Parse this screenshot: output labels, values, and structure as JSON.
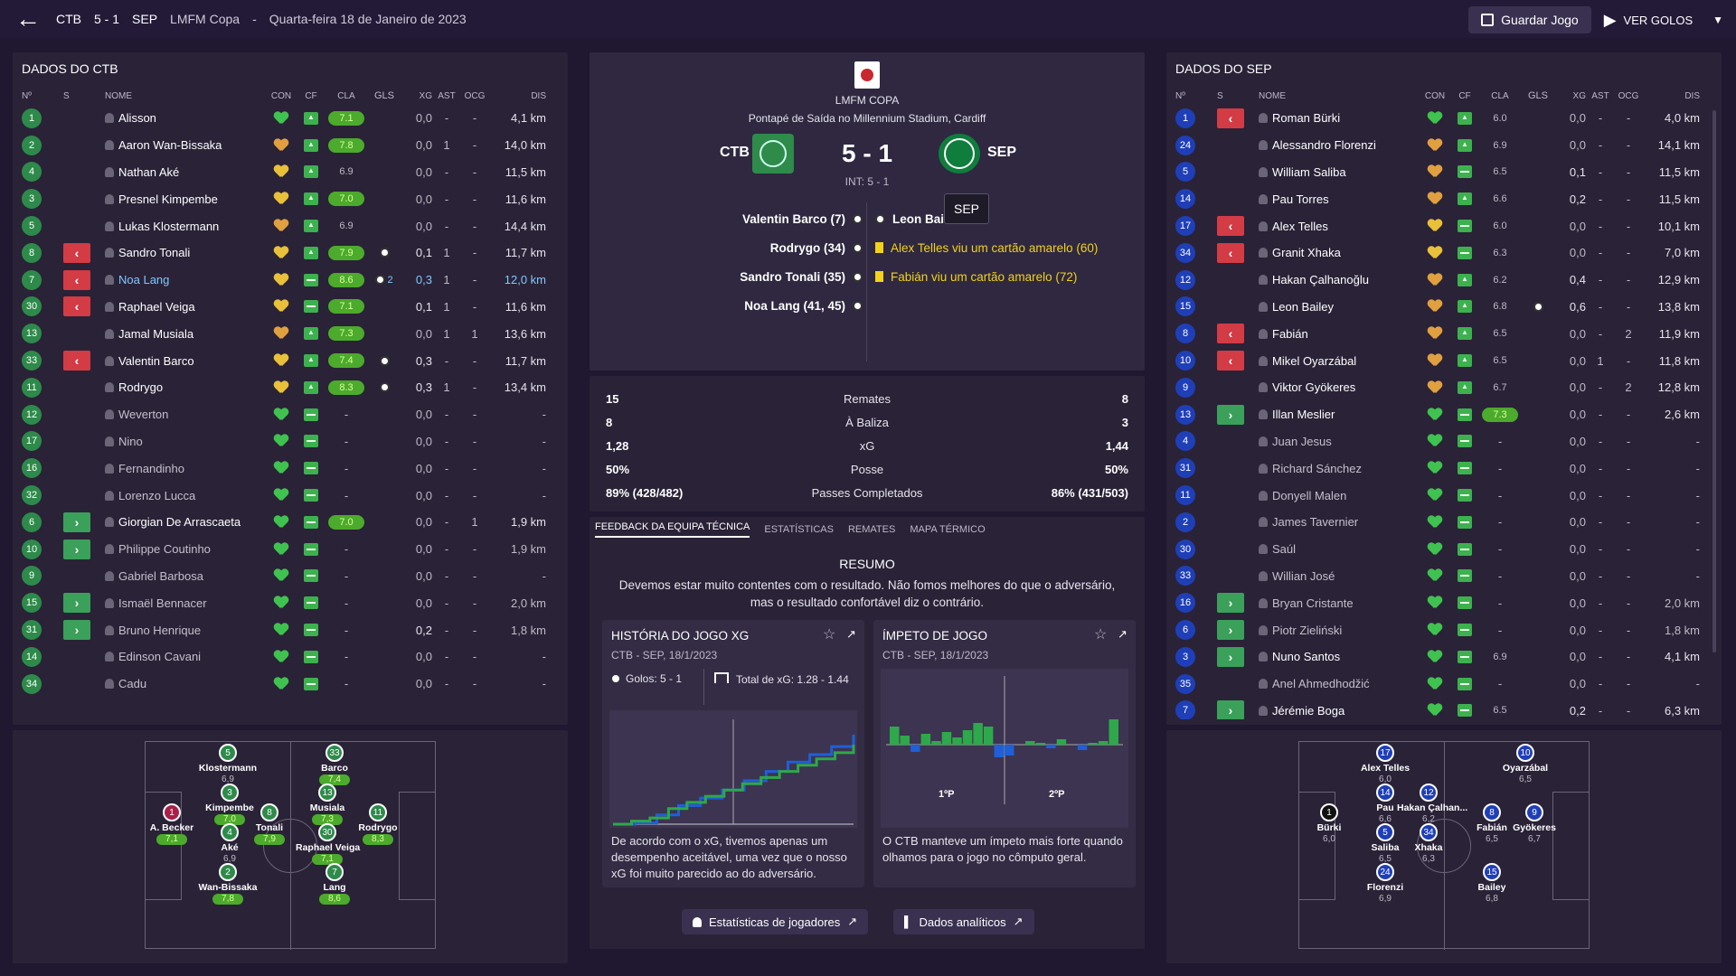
{
  "header": {
    "home_abbr": "CTB",
    "score": "5 - 1",
    "away_abbr": "SEP",
    "competition": "LMFM Copa",
    "separator": "-",
    "date": "Quarta-feira 18 de Janeiro de 2023",
    "save_label": "Guardar Jogo",
    "goals_label": "VER GOLOS"
  },
  "columns": {
    "no": "Nº",
    "s": "S",
    "name": "NOME",
    "con": "CON",
    "cf": "CF",
    "cla": "CLA",
    "gls": "GLS",
    "xg": "XG",
    "ast": "AST",
    "ocg": "OCG",
    "dis": "DIS"
  },
  "home": {
    "title": "DADOS DO CTB",
    "players": [
      {
        "no": "1",
        "s": "",
        "name": "Alisson",
        "heart": "g",
        "cf": "up",
        "cla": "7.1",
        "gls": "",
        "xg": "0,0",
        "ast": "-",
        "ocg": "-",
        "dis": "4,1 km"
      },
      {
        "no": "2",
        "s": "",
        "name": "Aaron Wan-Bissaka",
        "heart": "o",
        "cf": "up",
        "cla": "7.8",
        "gls": "",
        "xg": "0,0",
        "ast": "1",
        "ocg": "-",
        "dis": "14,0 km"
      },
      {
        "no": "4",
        "s": "",
        "name": "Nathan Aké",
        "heart": "y",
        "cf": "up",
        "cla": "6.9",
        "gls": "",
        "xg": "0,0",
        "ast": "-",
        "ocg": "-",
        "dis": "11,5 km"
      },
      {
        "no": "3",
        "s": "",
        "name": "Presnel Kimpembe",
        "heart": "y",
        "cf": "up",
        "cla": "7.0",
        "gls": "",
        "xg": "0,0",
        "ast": "-",
        "ocg": "-",
        "dis": "11,6 km"
      },
      {
        "no": "5",
        "s": "",
        "name": "Lukas Klostermann",
        "heart": "o",
        "cf": "up",
        "cla": "6.9",
        "gls": "",
        "xg": "0,0",
        "ast": "-",
        "ocg": "-",
        "dis": "14,4 km"
      },
      {
        "no": "8",
        "s": "out",
        "name": "Sandro Tonali",
        "heart": "y",
        "cf": "up",
        "cla": "7.9",
        "gls": "1",
        "xg": "0,1",
        "ast": "1",
        "ocg": "-",
        "dis": "11,7 km"
      },
      {
        "no": "7",
        "s": "out",
        "name": "Noa Lang",
        "heart": "y",
        "cf": "eq",
        "cla": "8.6",
        "gls": "2",
        "xg": "0,3",
        "ast": "1",
        "ocg": "-",
        "dis": "12,0 km",
        "hl": true
      },
      {
        "no": "30",
        "s": "out",
        "name": "Raphael Veiga",
        "heart": "y",
        "cf": "eq",
        "cla": "7.1",
        "gls": "",
        "xg": "0,1",
        "ast": "1",
        "ocg": "-",
        "dis": "11,6 km"
      },
      {
        "no": "13",
        "s": "",
        "name": "Jamal Musiala",
        "heart": "o",
        "cf": "up",
        "cla": "7.3",
        "gls": "",
        "xg": "0,0",
        "ast": "1",
        "ocg": "1",
        "dis": "13,6 km"
      },
      {
        "no": "33",
        "s": "out",
        "name": "Valentin Barco",
        "heart": "y",
        "cf": "up",
        "cla": "7.4",
        "gls": "1",
        "xg": "0,3",
        "ast": "-",
        "ocg": "-",
        "dis": "11,7 km"
      },
      {
        "no": "11",
        "s": "",
        "name": "Rodrygo",
        "heart": "y",
        "cf": "up",
        "cla": "8.3",
        "gls": "1",
        "xg": "0,3",
        "ast": "1",
        "ocg": "-",
        "dis": "13,4 km"
      },
      {
        "no": "12",
        "s": "",
        "name": "Weverton",
        "heart": "g",
        "cf": "eq",
        "cla": "-",
        "gls": "",
        "xg": "0,0",
        "ast": "-",
        "ocg": "-",
        "dis": "-"
      },
      {
        "no": "17",
        "s": "",
        "name": "Nino",
        "heart": "g",
        "cf": "eq",
        "cla": "-",
        "gls": "",
        "xg": "0,0",
        "ast": "-",
        "ocg": "-",
        "dis": "-"
      },
      {
        "no": "16",
        "s": "",
        "name": "Fernandinho",
        "heart": "g",
        "cf": "eq",
        "cla": "-",
        "gls": "",
        "xg": "0,0",
        "ast": "-",
        "ocg": "-",
        "dis": "-"
      },
      {
        "no": "32",
        "s": "",
        "name": "Lorenzo Lucca",
        "heart": "g",
        "cf": "eq",
        "cla": "-",
        "gls": "",
        "xg": "0,0",
        "ast": "-",
        "ocg": "-",
        "dis": "-"
      },
      {
        "no": "6",
        "s": "in",
        "name": "Giorgian De Arrascaeta",
        "heart": "g",
        "cf": "eq",
        "cla": "7.0",
        "gls": "",
        "xg": "0,0",
        "ast": "-",
        "ocg": "1",
        "dis": "1,9 km"
      },
      {
        "no": "10",
        "s": "in",
        "name": "Philippe Coutinho",
        "heart": "g",
        "cf": "eq",
        "cla": "-",
        "gls": "",
        "xg": "0,0",
        "ast": "-",
        "ocg": "-",
        "dis": "1,9 km"
      },
      {
        "no": "9",
        "s": "",
        "name": "Gabriel Barbosa",
        "heart": "g",
        "cf": "eq",
        "cla": "-",
        "gls": "",
        "xg": "0,0",
        "ast": "-",
        "ocg": "-",
        "dis": "-"
      },
      {
        "no": "15",
        "s": "in",
        "name": "Ismaël Bennacer",
        "heart": "g",
        "cf": "eq",
        "cla": "-",
        "gls": "",
        "xg": "0,0",
        "ast": "-",
        "ocg": "-",
        "dis": "2,0 km"
      },
      {
        "no": "31",
        "s": "in",
        "name": "Bruno Henrique",
        "heart": "g",
        "cf": "eq",
        "cla": "-",
        "gls": "",
        "xg": "0,2",
        "ast": "-",
        "ocg": "-",
        "dis": "1,8 km"
      },
      {
        "no": "14",
        "s": "",
        "name": "Edinson Cavani",
        "heart": "g",
        "cf": "eq",
        "cla": "-",
        "gls": "",
        "xg": "0,0",
        "ast": "-",
        "ocg": "-",
        "dis": "-"
      },
      {
        "no": "34",
        "s": "",
        "name": "Cadu",
        "heart": "g",
        "cf": "eq",
        "cla": "-",
        "gls": "",
        "xg": "0,0",
        "ast": "-",
        "ocg": "-",
        "dis": "-"
      }
    ],
    "formation": [
      {
        "no": "5",
        "name": "Klostermann",
        "rating": "6,9",
        "hi": false,
        "gk": false
      },
      {
        "no": "33",
        "name": "Barco",
        "rating": "7,4",
        "hi": true,
        "gk": false
      },
      {
        "no": "3",
        "name": "Kimpembe",
        "rating": "7,0",
        "hi": true,
        "gk": false
      },
      {
        "no": "13",
        "name": "Musiala",
        "rating": "7,3",
        "hi": true,
        "gk": false
      },
      {
        "no": "1",
        "name": "A. Becker",
        "rating": "7,1",
        "hi": true,
        "gk": true
      },
      {
        "no": "8",
        "name": "Tonali",
        "rating": "7,9",
        "hi": true,
        "gk": false
      },
      {
        "no": "11",
        "name": "Rodrygo",
        "rating": "8,3",
        "hi": true,
        "gk": false
      },
      {
        "no": "4",
        "name": "Aké",
        "rating": "6,9",
        "hi": false,
        "gk": false
      },
      {
        "no": "30",
        "name": "Raphael Veiga",
        "rating": "7,1",
        "hi": true,
        "gk": false
      },
      {
        "no": "2",
        "name": "Wan-Bissaka",
        "rating": "7,8",
        "hi": true,
        "gk": false
      },
      {
        "no": "7",
        "name": "Lang",
        "rating": "8,6",
        "hi": true,
        "gk": false
      }
    ]
  },
  "away": {
    "title": "DADOS DO SEP",
    "players": [
      {
        "no": "1",
        "s": "out",
        "name": "Roman Bürki",
        "heart": "g",
        "cf": "up",
        "cla": "6.0",
        "gls": "",
        "xg": "0,0",
        "ast": "-",
        "ocg": "-",
        "dis": "4,0 km"
      },
      {
        "no": "24",
        "s": "",
        "name": "Alessandro Florenzi",
        "heart": "o",
        "cf": "up",
        "cla": "6.9",
        "gls": "",
        "xg": "0,0",
        "ast": "-",
        "ocg": "-",
        "dis": "14,1 km"
      },
      {
        "no": "5",
        "s": "",
        "name": "William Saliba",
        "heart": "o",
        "cf": "eq",
        "cla": "6.5",
        "gls": "",
        "xg": "0,1",
        "ast": "-",
        "ocg": "-",
        "dis": "11,5 km"
      },
      {
        "no": "14",
        "s": "",
        "name": "Pau Torres",
        "heart": "o",
        "cf": "up",
        "cla": "6.6",
        "gls": "",
        "xg": "0,2",
        "ast": "-",
        "ocg": "-",
        "dis": "11,5 km"
      },
      {
        "no": "17",
        "s": "out",
        "name": "Alex Telles",
        "heart": "y",
        "cf": "eq",
        "cla": "6.0",
        "gls": "",
        "xg": "0,0",
        "ast": "-",
        "ocg": "-",
        "dis": "10,1 km"
      },
      {
        "no": "34",
        "s": "out",
        "name": "Granit Xhaka",
        "heart": "y",
        "cf": "eq",
        "cla": "6.3",
        "gls": "",
        "xg": "0,0",
        "ast": "-",
        "ocg": "-",
        "dis": "7,0 km"
      },
      {
        "no": "12",
        "s": "",
        "name": "Hakan Çalhanoğlu",
        "heart": "o",
        "cf": "up",
        "cla": "6.2",
        "gls": "",
        "xg": "0,4",
        "ast": "-",
        "ocg": "-",
        "dis": "12,9 km"
      },
      {
        "no": "15",
        "s": "",
        "name": "Leon Bailey",
        "heart": "o",
        "cf": "up",
        "cla": "6.8",
        "gls": "1",
        "xg": "0,6",
        "ast": "-",
        "ocg": "-",
        "dis": "13,8 km"
      },
      {
        "no": "8",
        "s": "out",
        "name": "Fabián",
        "heart": "o",
        "cf": "up",
        "cla": "6.5",
        "gls": "",
        "xg": "0,0",
        "ast": "-",
        "ocg": "2",
        "dis": "11,9 km"
      },
      {
        "no": "10",
        "s": "out",
        "name": "Mikel Oyarzábal",
        "heart": "o",
        "cf": "up",
        "cla": "6.5",
        "gls": "",
        "xg": "0,0",
        "ast": "1",
        "ocg": "-",
        "dis": "11,8 km"
      },
      {
        "no": "9",
        "s": "",
        "name": "Viktor Gyökeres",
        "heart": "o",
        "cf": "up",
        "cla": "6.7",
        "gls": "",
        "xg": "0,0",
        "ast": "-",
        "ocg": "2",
        "dis": "12,8 km"
      },
      {
        "no": "13",
        "s": "in",
        "name": "Illan Meslier",
        "heart": "g",
        "cf": "eq",
        "cla": "7.3",
        "gls": "",
        "xg": "0,0",
        "ast": "-",
        "ocg": "-",
        "dis": "2,6 km"
      },
      {
        "no": "4",
        "s": "",
        "name": "Juan Jesus",
        "heart": "g",
        "cf": "eq",
        "cla": "-",
        "gls": "",
        "xg": "0,0",
        "ast": "-",
        "ocg": "-",
        "dis": "-"
      },
      {
        "no": "31",
        "s": "",
        "name": "Richard Sánchez",
        "heart": "g",
        "cf": "eq",
        "cla": "-",
        "gls": "",
        "xg": "0,0",
        "ast": "-",
        "ocg": "-",
        "dis": "-"
      },
      {
        "no": "11",
        "s": "",
        "name": "Donyell Malen",
        "heart": "g",
        "cf": "eq",
        "cla": "-",
        "gls": "",
        "xg": "0,0",
        "ast": "-",
        "ocg": "-",
        "dis": "-"
      },
      {
        "no": "2",
        "s": "",
        "name": "James Tavernier",
        "heart": "g",
        "cf": "eq",
        "cla": "-",
        "gls": "",
        "xg": "0,0",
        "ast": "-",
        "ocg": "-",
        "dis": "-"
      },
      {
        "no": "30",
        "s": "",
        "name": "Saúl",
        "heart": "g",
        "cf": "eq",
        "cla": "-",
        "gls": "",
        "xg": "0,0",
        "ast": "-",
        "ocg": "-",
        "dis": "-"
      },
      {
        "no": "33",
        "s": "",
        "name": "Willian José",
        "heart": "g",
        "cf": "eq",
        "cla": "-",
        "gls": "",
        "xg": "0,0",
        "ast": "-",
        "ocg": "-",
        "dis": "-"
      },
      {
        "no": "16",
        "s": "in",
        "name": "Bryan Cristante",
        "heart": "g",
        "cf": "eq",
        "cla": "-",
        "gls": "",
        "xg": "0,0",
        "ast": "-",
        "ocg": "-",
        "dis": "2,0 km"
      },
      {
        "no": "6",
        "s": "in",
        "name": "Piotr Zieliński",
        "heart": "g",
        "cf": "eq",
        "cla": "-",
        "gls": "",
        "xg": "0,0",
        "ast": "-",
        "ocg": "-",
        "dis": "1,8 km"
      },
      {
        "no": "3",
        "s": "in",
        "name": "Nuno Santos",
        "heart": "g",
        "cf": "eq",
        "cla": "6.9",
        "gls": "",
        "xg": "0,0",
        "ast": "-",
        "ocg": "-",
        "dis": "4,1 km"
      },
      {
        "no": "35",
        "s": "",
        "name": "Anel Ahmedhodžić",
        "heart": "g",
        "cf": "eq",
        "cla": "-",
        "gls": "",
        "xg": "0,0",
        "ast": "-",
        "ocg": "-",
        "dis": "-"
      },
      {
        "no": "7",
        "s": "in",
        "name": "Jérémie Boga",
        "heart": "g",
        "cf": "eq",
        "cla": "6.5",
        "gls": "",
        "xg": "0,2",
        "ast": "-",
        "ocg": "-",
        "dis": "6,3 km"
      }
    ],
    "formation": [
      {
        "no": "17",
        "name": "Alex Telles",
        "rating": "6,0",
        "hi": false,
        "gk": false
      },
      {
        "no": "10",
        "name": "Oyarzábal",
        "rating": "6,5",
        "hi": false,
        "gk": false
      },
      {
        "no": "14",
        "name": "Pau",
        "rating": "6,6",
        "hi": false,
        "gk": false
      },
      {
        "no": "12",
        "name": "Hakan Çalhan...",
        "rating": "6,2",
        "hi": false,
        "gk": false
      },
      {
        "no": "1",
        "name": "Bürki",
        "rating": "6,0",
        "hi": false,
        "gk": true
      },
      {
        "no": "8",
        "name": "Fabián",
        "rating": "6,5",
        "hi": false,
        "gk": false
      },
      {
        "no": "9",
        "name": "Gyökeres",
        "rating": "6,7",
        "hi": false,
        "gk": false
      },
      {
        "no": "5",
        "name": "Saliba",
        "rating": "6,5",
        "hi": false,
        "gk": false
      },
      {
        "no": "34",
        "name": "Xhaka",
        "rating": "6,3",
        "hi": false,
        "gk": false
      },
      {
        "no": "24",
        "name": "Florenzi",
        "rating": "6,9",
        "hi": false,
        "gk": false
      },
      {
        "no": "15",
        "name": "Bailey",
        "rating": "6,8",
        "hi": false,
        "gk": false
      }
    ]
  },
  "match": {
    "competition": "LMFM COPA",
    "venue": "Pontapé de Saída no Millennium Stadium, Cardiff",
    "home": "CTB",
    "away": "SEP",
    "score": "5 - 1",
    "ht": "INT: 5 - 1",
    "tooltip": "SEP",
    "home_scorers": [
      "Valentin Barco (7)",
      "Rodrygo (34)",
      "Sandro Tonali (35)",
      "Noa Lang (41, 45)"
    ],
    "away_events": [
      {
        "type": "goal",
        "text": "Leon Bai"
      },
      {
        "type": "yellow",
        "text": "Alex Telles viu um cartão amarelo (60)"
      },
      {
        "type": "yellow",
        "text": "Fabián viu um cartão amarelo (72)"
      }
    ],
    "colors": {
      "home": "#2e8b4a",
      "away": "#0f7d3c",
      "yellow": "#f2d21c"
    }
  },
  "stats": [
    {
      "home": "15",
      "label": "Remates",
      "away": "8"
    },
    {
      "home": "8",
      "label": "À Baliza",
      "away": "3"
    },
    {
      "home": "1,28",
      "label": "xG",
      "away": "1,44"
    },
    {
      "home": "50%",
      "label": "Posse",
      "away": "50%"
    },
    {
      "home": "89% (428/482)",
      "label": "Passes Completados",
      "away": "86% (431/503)"
    }
  ],
  "tabs": [
    "FEEDBACK DA EQUIPA TÉCNICA",
    "ESTATÍSTICAS",
    "REMATES",
    "MAPA TÉRMICO"
  ],
  "feedback": {
    "title": "RESUMO",
    "text": "Devemos estar muito contentes com o resultado. Não fomos melhores do que o adversário, mas o resultado confortável diz o contrário."
  },
  "xg_card": {
    "title": "HISTÓRIA DO JOGO XG",
    "subtitle": "CTB - SEP, 18/1/2023",
    "goals": "Golos: 5 - 1",
    "total": "Total de xG: 1.28 - 1.44",
    "caption": "De acordo com o xG, tivemos apenas um desempenho aceitável, uma vez que o nosso xG foi muito parecido ao do adversário.",
    "home_steps": [
      0,
      0.05,
      0.1,
      0.25,
      0.35,
      0.45,
      0.55,
      0.65,
      0.75,
      0.85,
      0.95,
      1.05,
      1.15,
      1.28
    ],
    "away_steps": [
      0,
      0.02,
      0.15,
      0.3,
      0.42,
      0.55,
      0.7,
      0.85,
      1.0,
      1.12,
      1.25,
      1.44
    ]
  },
  "momentum_card": {
    "title": "ÍMPETO DE JOGO",
    "subtitle": "CTB - SEP, 18/1/2023",
    "p1": "1ºP",
    "p2": "2ºP",
    "caption": "O CTB manteve um ímpeto mais forte quando olhamos para o jogo no cômputo geral.",
    "values": [
      0.5,
      0.25,
      -0.2,
      0.3,
      0.1,
      0.35,
      0.2,
      0.4,
      0.6,
      0.5,
      -0.35,
      -0.3,
      0.0,
      0.1,
      0.05,
      -0.1,
      0.15,
      0.0,
      -0.15,
      0.05,
      0.1,
      0.7
    ]
  },
  "bottom": {
    "players_btn": "Estatísticas de jogadores",
    "analytics_btn": "Dados analíticos"
  }
}
